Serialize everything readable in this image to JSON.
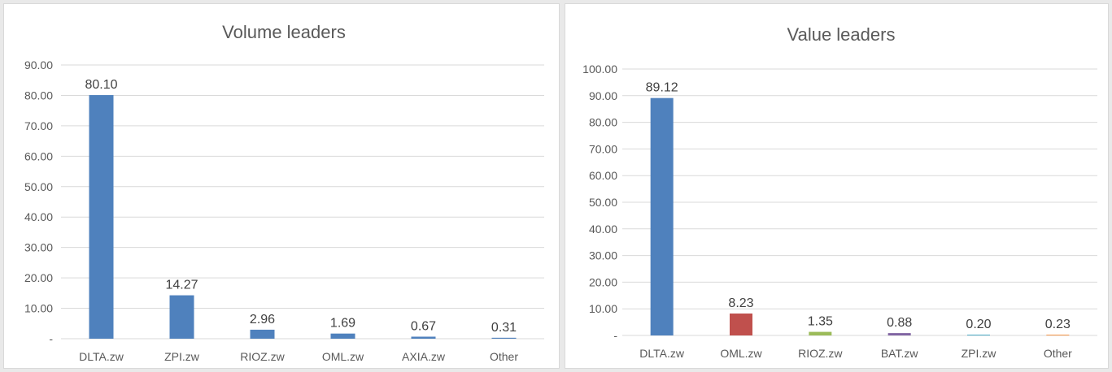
{
  "chart_data": [
    {
      "type": "bar",
      "title": "Volume leaders",
      "categories": [
        "DLTA.zw",
        "ZPI.zw",
        "RIOZ.zw",
        "OML.zw",
        "AXIA.zw",
        "Other"
      ],
      "values": [
        80.1,
        14.27,
        2.96,
        1.69,
        0.67,
        0.31
      ],
      "data_labels": [
        "80.10",
        "14.27",
        "2.96",
        "1.69",
        "0.67",
        "0.31"
      ],
      "yticks": [
        "-",
        "10.00",
        "20.00",
        "30.00",
        "40.00",
        "50.00",
        "60.00",
        "70.00",
        "80.00",
        "90.00"
      ],
      "ylim": [
        0,
        90
      ],
      "bar_colors": [
        "#4f81bd",
        "#4f81bd",
        "#4f81bd",
        "#4f81bd",
        "#4f81bd",
        "#4f81bd"
      ],
      "grid": true,
      "legend": "none"
    },
    {
      "type": "bar",
      "title": "Value leaders",
      "categories": [
        "DLTA.zw",
        "OML.zw",
        "RIOZ.zw",
        "BAT.zw",
        "ZPI.zw",
        "Other"
      ],
      "values": [
        89.12,
        8.23,
        1.35,
        0.88,
        0.2,
        0.23
      ],
      "data_labels": [
        "89.12",
        "8.23",
        "1.35",
        "0.88",
        "0.20",
        "0.23"
      ],
      "yticks": [
        "-",
        "10.00",
        "20.00",
        "30.00",
        "40.00",
        "50.00",
        "60.00",
        "70.00",
        "80.00",
        "90.00",
        "100.00"
      ],
      "ylim": [
        0,
        100
      ],
      "bar_colors": [
        "#4f81bd",
        "#c0504d",
        "#9bbb59",
        "#8064a2",
        "#4bacc6",
        "#f79646"
      ],
      "grid": true,
      "legend": "none"
    }
  ]
}
